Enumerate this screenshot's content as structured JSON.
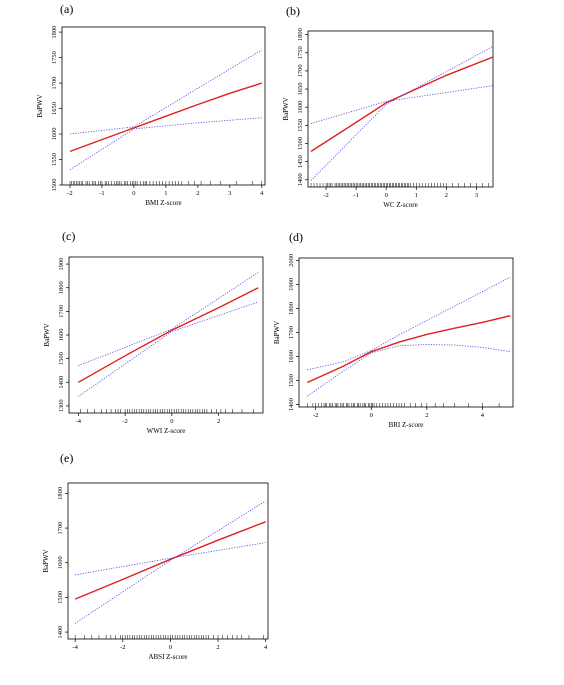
{
  "chart_data": [
    {
      "label": "(a)",
      "type": "line",
      "xlabel": "BMI Z-score",
      "ylabel": "BaPWV",
      "xlim": [
        -2.25,
        4.1
      ],
      "ylim": [
        1500,
        1810
      ],
      "xticks": [
        -2,
        -1,
        0,
        1,
        2,
        3,
        4
      ],
      "yticks": [
        1500,
        1550,
        1600,
        1650,
        1700,
        1750,
        1800
      ],
      "series": [
        {
          "role": "fit",
          "color": "#e0201e",
          "x": [
            -2,
            -1,
            0,
            1,
            2,
            3,
            4
          ],
          "y": [
            1566,
            1589,
            1612,
            1635,
            1658,
            1680,
            1700
          ]
        },
        {
          "role": "ci-upper",
          "color": "#4a4ae0",
          "x": [
            -2,
            0,
            2,
            4
          ],
          "y": [
            1600,
            1614,
            1690,
            1765
          ]
        },
        {
          "role": "ci-lower",
          "color": "#4a4ae0",
          "x": [
            -2,
            0,
            2,
            4
          ],
          "y": [
            1530,
            1610,
            1622,
            1632
          ]
        }
      ],
      "rug": [
        -2.0,
        -1.95,
        -1.9,
        -1.85,
        -1.8,
        -1.75,
        -1.7,
        -1.65,
        -1.6,
        -1.5,
        -1.45,
        -1.4,
        -1.3,
        -1.25,
        -1.2,
        -1.1,
        -1.05,
        -1.0,
        -0.9,
        -0.85,
        -0.8,
        -0.7,
        -0.6,
        -0.55,
        -0.5,
        -0.45,
        -0.4,
        -0.3,
        -0.25,
        -0.2,
        -0.1,
        -0.05,
        0.0,
        0.05,
        0.1,
        0.2,
        0.3,
        0.35,
        0.4,
        0.5,
        0.6,
        0.7,
        0.8,
        0.9,
        1.0,
        1.1,
        1.2,
        1.3,
        1.4,
        1.5,
        1.7,
        1.9,
        2.1,
        2.4,
        2.7,
        3.2,
        3.7,
        4.0
      ]
    },
    {
      "label": "(b)",
      "type": "line",
      "xlabel": "WC Z-score",
      "ylabel": "BaPWV",
      "xlim": [
        -2.6,
        3.55
      ],
      "ylim": [
        1380,
        1810
      ],
      "xticks": [
        -2,
        -1,
        0,
        1,
        2,
        3
      ],
      "yticks": [
        1400,
        1450,
        1500,
        1550,
        1600,
        1650,
        1700,
        1750,
        1800
      ],
      "series": [
        {
          "role": "fit",
          "color": "#e0201e",
          "x": [
            -2.5,
            -1,
            0,
            1,
            2,
            3.6
          ],
          "y": [
            1478,
            1558,
            1612,
            1650,
            1688,
            1740
          ]
        },
        {
          "role": "ci-upper",
          "color": "#4a4ae0",
          "x": [
            -2.5,
            0,
            3.6
          ],
          "y": [
            1555,
            1616,
            1660
          ]
        },
        {
          "role": "ci-lower",
          "color": "#4a4ae0",
          "x": [
            -2.5,
            0,
            3.6
          ],
          "y": [
            1398,
            1608,
            1770
          ]
        }
      ],
      "rug": [
        -2.5,
        -2.4,
        -2.3,
        -2.2,
        -2.1,
        -2.0,
        -1.95,
        -1.9,
        -1.85,
        -1.8,
        -1.7,
        -1.65,
        -1.6,
        -1.55,
        -1.5,
        -1.45,
        -1.4,
        -1.35,
        -1.3,
        -1.25,
        -1.2,
        -1.15,
        -1.1,
        -1.05,
        -1.0,
        -0.95,
        -0.9,
        -0.85,
        -0.8,
        -0.75,
        -0.7,
        -0.65,
        -0.6,
        -0.55,
        -0.5,
        -0.45,
        -0.4,
        -0.35,
        -0.3,
        -0.25,
        -0.2,
        -0.15,
        -0.1,
        -0.05,
        0.0,
        0.05,
        0.1,
        0.15,
        0.2,
        0.25,
        0.3,
        0.35,
        0.4,
        0.45,
        0.5,
        0.55,
        0.6,
        0.65,
        0.7,
        0.75,
        0.8,
        0.9,
        1.0,
        1.1,
        1.2,
        1.3,
        1.4,
        1.5,
        1.6,
        1.7,
        1.8,
        1.9,
        2.0,
        2.2,
        2.4,
        2.6,
        2.8,
        3.0,
        3.2,
        3.4
      ]
    },
    {
      "label": "(c)",
      "type": "line",
      "xlabel": "WWI Z-score",
      "ylabel": "BaPWV",
      "xlim": [
        -4.4,
        3.9
      ],
      "ylim": [
        1270,
        1930
      ],
      "xticks": [
        -4,
        -2,
        0,
        2
      ],
      "yticks": [
        1300,
        1400,
        1500,
        1600,
        1700,
        1800,
        1900
      ],
      "series": [
        {
          "role": "fit",
          "color": "#e0201e",
          "x": [
            -4,
            -2,
            0,
            2,
            3.7
          ],
          "y": [
            1400,
            1512,
            1620,
            1715,
            1800
          ]
        },
        {
          "role": "ci-upper",
          "color": "#4a4ae0",
          "x": [
            -4,
            0,
            3.7
          ],
          "y": [
            1470,
            1625,
            1865
          ]
        },
        {
          "role": "ci-lower",
          "color": "#4a4ae0",
          "x": [
            -4,
            0,
            3.7
          ],
          "y": [
            1340,
            1615,
            1740
          ]
        }
      ],
      "rug": [
        -3.9,
        -3.6,
        -3.3,
        -3.0,
        -2.8,
        -2.6,
        -2.4,
        -2.3,
        -2.2,
        -2.0,
        -1.9,
        -1.8,
        -1.7,
        -1.6,
        -1.5,
        -1.4,
        -1.3,
        -1.2,
        -1.1,
        -1.0,
        -0.9,
        -0.8,
        -0.7,
        -0.6,
        -0.5,
        -0.4,
        -0.3,
        -0.2,
        -0.1,
        0.0,
        0.1,
        0.2,
        0.3,
        0.4,
        0.5,
        0.6,
        0.7,
        0.8,
        0.9,
        1.0,
        1.1,
        1.2,
        1.3,
        1.4,
        1.5,
        1.7,
        1.9,
        2.1,
        2.3,
        2.6,
        3.0,
        3.5
      ]
    },
    {
      "label": "(d)",
      "type": "line",
      "xlabel": "BRI Z-score",
      "ylabel": "BaPWV",
      "xlim": [
        -2.6,
        5.1
      ],
      "ylim": [
        1390,
        2010
      ],
      "xticks": [
        -2,
        0,
        2,
        4
      ],
      "yticks": [
        1400,
        1500,
        1600,
        1700,
        1800,
        1900,
        2000
      ],
      "series": [
        {
          "role": "fit",
          "color": "#e0201e",
          "x": [
            -2.3,
            -1,
            0,
            1,
            2,
            3,
            4,
            5
          ],
          "y": [
            1492,
            1560,
            1620,
            1660,
            1692,
            1718,
            1742,
            1770
          ]
        },
        {
          "role": "ci-upper",
          "color": "#4a4ae0",
          "x": [
            -2.3,
            -1,
            0,
            1,
            2,
            3,
            4,
            5
          ],
          "y": [
            1545,
            1578,
            1625,
            1690,
            1750,
            1810,
            1870,
            1930
          ]
        },
        {
          "role": "ci-lower",
          "color": "#4a4ae0",
          "x": [
            -2.3,
            -1,
            0,
            1,
            2,
            3,
            4,
            5
          ],
          "y": [
            1435,
            1540,
            1615,
            1645,
            1650,
            1648,
            1638,
            1620
          ]
        }
      ],
      "rug": [
        -2.3,
        -2.1,
        -2.0,
        -1.9,
        -1.8,
        -1.7,
        -1.65,
        -1.6,
        -1.5,
        -1.45,
        -1.4,
        -1.3,
        -1.25,
        -1.2,
        -1.1,
        -1.05,
        -1.0,
        -0.9,
        -0.85,
        -0.8,
        -0.7,
        -0.65,
        -0.6,
        -0.5,
        -0.45,
        -0.4,
        -0.3,
        -0.25,
        -0.2,
        -0.1,
        -0.05,
        0.0,
        0.05,
        0.1,
        0.2,
        0.3,
        0.4,
        0.5,
        0.6,
        0.7,
        0.8,
        0.9,
        1.0,
        1.1,
        1.2,
        1.4,
        1.6,
        1.8,
        2.0,
        2.3,
        2.6,
        3.0,
        3.5,
        4.0,
        4.6
      ]
    },
    {
      "label": "(e)",
      "type": "line",
      "xlabel": "ABSI Z-score",
      "ylabel": "BaPWV",
      "xlim": [
        -4.3,
        4.1
      ],
      "ylim": [
        1380,
        1830
      ],
      "xticks": [
        -4,
        -2,
        0,
        2,
        4
      ],
      "yticks": [
        1400,
        1500,
        1600,
        1700,
        1800
      ],
      "series": [
        {
          "role": "fit",
          "color": "#e0201e",
          "x": [
            -4,
            -2,
            0,
            2,
            4
          ],
          "y": [
            1495,
            1552,
            1610,
            1665,
            1718
          ]
        },
        {
          "role": "ci-upper",
          "color": "#4a4ae0",
          "x": [
            -4,
            0,
            4
          ],
          "y": [
            1565,
            1613,
            1658
          ]
        },
        {
          "role": "ci-lower",
          "color": "#4a4ae0",
          "x": [
            -4,
            0,
            4
          ],
          "y": [
            1425,
            1607,
            1778
          ]
        }
      ],
      "rug": [
        -4.0,
        -3.6,
        -3.3,
        -3.0,
        -2.7,
        -2.5,
        -2.3,
        -2.1,
        -2.0,
        -1.9,
        -1.8,
        -1.7,
        -1.6,
        -1.5,
        -1.4,
        -1.3,
        -1.2,
        -1.1,
        -1.0,
        -0.9,
        -0.8,
        -0.7,
        -0.6,
        -0.5,
        -0.4,
        -0.3,
        -0.2,
        -0.1,
        0.0,
        0.1,
        0.2,
        0.3,
        0.4,
        0.5,
        0.6,
        0.7,
        0.8,
        0.9,
        1.0,
        1.1,
        1.2,
        1.3,
        1.4,
        1.5,
        1.6,
        1.8,
        2.0,
        2.2,
        2.4,
        2.6,
        2.8,
        3.0,
        3.3,
        3.9
      ]
    }
  ]
}
